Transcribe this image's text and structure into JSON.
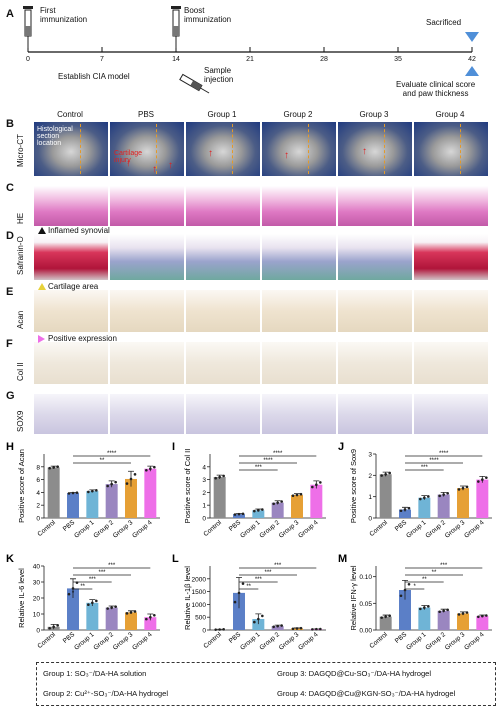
{
  "panels": {
    "A": "A",
    "B": "B",
    "C": "C",
    "D": "D",
    "E": "E",
    "F": "F",
    "G": "G",
    "H": "H",
    "I": "I",
    "J": "J",
    "K": "K",
    "L": "L",
    "M": "M"
  },
  "timeline": {
    "ticks": [
      "0",
      "7",
      "14",
      "21",
      "28",
      "35",
      "42"
    ],
    "first_immunization": "First\nimmunization",
    "boost_immunization": "Boost\nimmunization",
    "sacrificed": "Sacrificed",
    "establish": "Establish CIA model",
    "sample_injection": "Sample\ninjection",
    "evaluate": "Evaluate clinical score\nand paw thickness"
  },
  "image_grid": {
    "columns": [
      "Control",
      "PBS",
      "Group 1",
      "Group 2",
      "Group 3",
      "Group 4"
    ],
    "rows": [
      "Micro-CT",
      "HE",
      "Safranin-O",
      "Acan",
      "Col II",
      "SOX9"
    ],
    "annotations": {
      "histological": "Histological\nsection\nlocation",
      "cartilage_injury": "Cartilage\ninjury",
      "inflamed_synovial": "Inflamed synovial",
      "cartilage_area": "Cartilage area",
      "positive_expression": "Positive expression"
    }
  },
  "colors": {
    "control": "#8c8c8c",
    "pbs": "#5b7fc7",
    "group1": "#6fb4d6",
    "group2": "#9a86c0",
    "group3": "#e6a035",
    "group4": "#ee6fe8"
  },
  "chart_data": [
    {
      "type": "bar",
      "panel": "H",
      "ylabel": "Positive score of Acan",
      "categories": [
        "Control",
        "PBS",
        "Group 1",
        "Group 2",
        "Group 3",
        "Group 4"
      ],
      "values": [
        7.9,
        3.9,
        4.2,
        5.3,
        6.1,
        7.7
      ],
      "errors": [
        0.2,
        0.1,
        0.2,
        0.5,
        1.2,
        0.4
      ],
      "ylim": [
        0,
        10
      ],
      "yticks": [
        "0",
        "2",
        "4",
        "6",
        "8"
      ],
      "sig": [
        "****",
        "**"
      ]
    },
    {
      "type": "bar",
      "panel": "I",
      "ylabel": "Positive score of Col II",
      "categories": [
        "Control",
        "PBS",
        "Group 1",
        "Group 2",
        "Group 3",
        "Group 4"
      ],
      "values": [
        3.2,
        0.3,
        0.6,
        1.2,
        1.8,
        2.6
      ],
      "errors": [
        0.15,
        0.05,
        0.1,
        0.15,
        0.1,
        0.3
      ],
      "ylim": [
        0,
        5
      ],
      "yticks": [
        "0",
        "1",
        "2",
        "3",
        "4"
      ],
      "sig": [
        "****",
        "****",
        "***"
      ]
    },
    {
      "type": "bar",
      "panel": "J",
      "ylabel": "Positive score of Sox9",
      "categories": [
        "Control",
        "PBS",
        "Group 1",
        "Group 2",
        "Group 3",
        "Group 4"
      ],
      "values": [
        2.05,
        0.4,
        0.95,
        1.1,
        1.4,
        1.8
      ],
      "errors": [
        0.1,
        0.1,
        0.1,
        0.1,
        0.1,
        0.15
      ],
      "ylim": [
        0,
        3
      ],
      "yticks": [
        "0",
        "1",
        "2",
        "3"
      ],
      "sig": [
        "****",
        "****",
        "***"
      ]
    },
    {
      "type": "bar",
      "panel": "K",
      "ylabel": "Relative IL-6 level",
      "categories": [
        "Control",
        "PBS",
        "Group 1",
        "Group 2",
        "Group 3",
        "Group 4"
      ],
      "values": [
        2,
        26,
        17,
        14,
        11,
        8
      ],
      "errors": [
        1.5,
        6,
        2,
        1,
        1,
        2
      ],
      "ylim": [
        0,
        40
      ],
      "yticks": [
        "0",
        "10",
        "20",
        "30",
        "40"
      ],
      "sig": [
        "***",
        "***",
        "***",
        "**",
        "*"
      ]
    },
    {
      "type": "bar",
      "panel": "L",
      "ylabel": "Relative IL-1β level",
      "categories": [
        "Control",
        "PBS",
        "Group 1",
        "Group 2",
        "Group 3",
        "Group 4"
      ],
      "values": [
        20,
        1450,
        430,
        150,
        60,
        30
      ],
      "errors": [
        10,
        600,
        200,
        40,
        20,
        10
      ],
      "ylim": [
        0,
        2500
      ],
      "yticks": [
        "0",
        "500",
        "1000",
        "1500",
        "2000"
      ],
      "sig": [
        "***",
        "***",
        "***",
        "**"
      ]
    },
    {
      "type": "bar",
      "panel": "M",
      "ylabel": "Relative IFN-γ level",
      "categories": [
        "Control",
        "PBS",
        "Group 1",
        "Group 2",
        "Group 3",
        "Group 4"
      ],
      "values": [
        0.025,
        0.075,
        0.042,
        0.036,
        0.031,
        0.026
      ],
      "errors": [
        0.003,
        0.018,
        0.004,
        0.003,
        0.003,
        0.002
      ],
      "ylim": [
        0,
        0.12
      ],
      "yticks": [
        "0.00",
        "0.05",
        "0.10"
      ],
      "sig": [
        "***",
        "**",
        "**",
        "*"
      ]
    }
  ],
  "legend": {
    "g1": "Group 1: SO₃⁻/DA-HA solution",
    "g2": "Group 2: Cu²⁺-SO₃⁻/DA-HA hydrogel",
    "g3": "Group 3: DAGQD@Cu-SO₃⁻/DA-HA hydrogel",
    "g4": "Group 4: DAGQD@Cu@KGN-SO₃⁻/DA-HA hydrogel"
  }
}
